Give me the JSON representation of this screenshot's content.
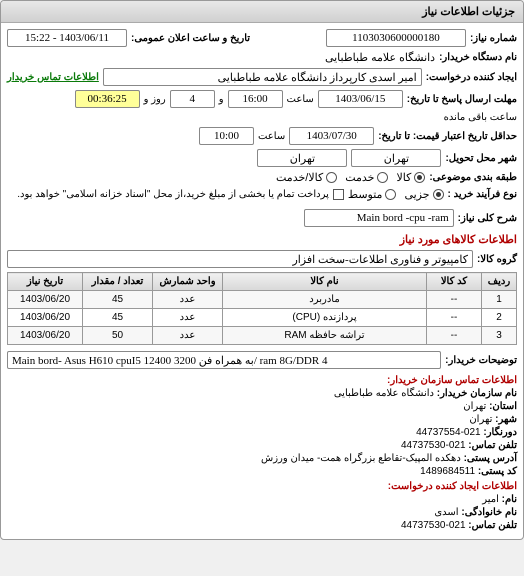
{
  "panel_title": "جزئیات اطلاعات نیاز",
  "need_number": {
    "label": "شماره نیاز:",
    "value": "1103030600000180"
  },
  "announce": {
    "label": "تاریخ و ساعت اعلان عمومی:",
    "value": "1403/06/11 - 15:22"
  },
  "buyer_dept": {
    "label": "نام دستگاه خریدار:",
    "value": "دانشگاه علامه طباطبایی"
  },
  "requester": {
    "label": "ایجاد کننده درخواست:",
    "value": "امیر اسدی کارپرداز دانشگاه علامه طباطبایی"
  },
  "contact_link": "اطلاعات تماس خریدار",
  "answer_deadline": {
    "label": "مهلت ارسال پاسخ تا تاریخ:",
    "date": "1403/06/15",
    "time_label": "ساعت",
    "time": "16:00",
    "and": "و",
    "days": "4",
    "days_label": "روز و",
    "countdown": "00:36:25",
    "remaining": "ساعت باقی مانده"
  },
  "price_validity": {
    "label": "حداقل تاریخ اعتبار قیمت: تا تاریخ:",
    "date": "1403/07/30",
    "time_label": "ساعت",
    "time": "10:00"
  },
  "delivery_city": {
    "label": "شهر محل تحویل:",
    "province": "تهران",
    "city": "تهران"
  },
  "subject_class": {
    "label": "طبقه بندی موضوعی:",
    "options": [
      "کالا",
      "خدمت",
      "کالا/خدمت"
    ],
    "selected": 0
  },
  "process_type": {
    "label": "نوع فرآیند خرید :",
    "options": [
      "جزیی",
      "متوسط"
    ],
    "selected": 0,
    "checkbox_label": "پرداخت تمام یا بخشی از مبلغ خرید،از محل \"اسناد خزانه اسلامی\" خواهد بود."
  },
  "need_desc": {
    "label": "شرح کلی نیاز:",
    "value": "Main bord -cpu -ram"
  },
  "items_section_title": "اطلاعات کالاهای مورد نیاز",
  "item_group": {
    "label": "گروه کالا:",
    "value": "کامپیوتر و فناوری اطلاعات-سخت افزار"
  },
  "table": {
    "headers": [
      "ردیف",
      "کد کالا",
      "نام کالا",
      "واحد شمارش",
      "تعداد / مقدار",
      "تاریخ نیاز"
    ],
    "rows": [
      [
        "1",
        "--",
        "مادربرد",
        "عدد",
        "45",
        "1403/06/20"
      ],
      [
        "2",
        "--",
        "پردازنده (CPU)",
        "عدد",
        "45",
        "1403/06/20"
      ],
      [
        "3",
        "--",
        "تراشه حافظه RAM",
        "عدد",
        "50",
        "1403/06/20"
      ]
    ]
  },
  "buyer_notes": {
    "label": "توضیحات خریدار:",
    "value": "Main bord- Asus H610 cpuI5 12400 به همراه فن 3200/ ram 8G/DDR 4"
  },
  "footer_title": "اطلاعات تماس سازمان خریدار:",
  "footer": {
    "org_name": {
      "label": "نام سازمان خریدار:",
      "value": "دانشگاه علامه طباطبایی"
    },
    "province": {
      "label": "استان:",
      "value": "تهران"
    },
    "city": {
      "label": "شهر:",
      "value": "تهران"
    },
    "fax": {
      "label": "دورنگار:",
      "value": "021-44737554"
    },
    "phone": {
      "label": "تلفن تماس:",
      "value": "021-44737530"
    },
    "address": {
      "label": "آدرس پستی:",
      "value": "دهکده المپیک-تقاطع بزرگراه همت- میدان ورزش"
    },
    "postal": {
      "label": "کد پستی:",
      "value": "1489684511"
    }
  },
  "creator_title": "اطلاعات ایجاد کننده درخواست:",
  "creator": {
    "name": {
      "label": "نام:",
      "value": "امیر"
    },
    "family": {
      "label": "نام خانوادگی:",
      "value": "اسدی"
    },
    "phone": {
      "label": "تلفن تماس:",
      "value": "021-44737530"
    }
  }
}
